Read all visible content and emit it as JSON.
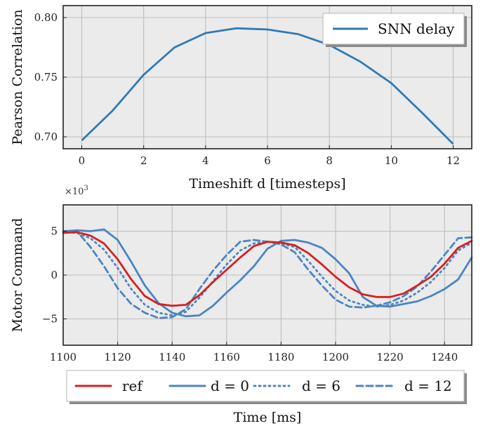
{
  "chart_data": [
    {
      "type": "line",
      "xlabel": "Timeshift d [timesteps]",
      "ylabel": "Pearson Correlation",
      "xlim": [
        -0.6,
        12.6
      ],
      "ylim": [
        0.69,
        0.81
      ],
      "xticks": [
        "0",
        "2",
        "4",
        "6",
        "8",
        "10",
        "12"
      ],
      "yticks": [
        "0.70",
        "0.75",
        "0.80"
      ],
      "grid": true,
      "legend_position": "top-right",
      "x": [
        0,
        1,
        2,
        3,
        4,
        5,
        6,
        7,
        8,
        9,
        10,
        11,
        12
      ],
      "series": [
        {
          "name": "SNN delay",
          "color": "#2e7ab6",
          "values": [
            0.697,
            0.722,
            0.752,
            0.775,
            0.787,
            0.791,
            0.79,
            0.786,
            0.777,
            0.763,
            0.745,
            0.72,
            0.694
          ]
        }
      ]
    },
    {
      "type": "line",
      "xlabel": "Time [ms]",
      "ylabel": "Motor Command",
      "scale_label": "×10^3",
      "xlim": [
        1100,
        1250
      ],
      "ylim": [
        -8,
        8
      ],
      "xticks": [
        "1100",
        "1120",
        "1140",
        "1160",
        "1180",
        "1200",
        "1220",
        "1240"
      ],
      "yticks": [
        "-5",
        "0",
        "5"
      ],
      "grid": true,
      "legend_position": "bottom-center",
      "legend": [
        {
          "label": "ref",
          "style": "solid",
          "color": "#d62020"
        },
        {
          "label": "d = 0",
          "style": "solid",
          "color": "#4a86c0"
        },
        {
          "label": "d = 6",
          "style": "dotted",
          "color": "#4a86c0"
        },
        {
          "label": "d = 12",
          "style": "dashed",
          "color": "#4a86c0"
        }
      ],
      "x": [
        1100,
        1105,
        1110,
        1115,
        1120,
        1125,
        1130,
        1135,
        1140,
        1145,
        1150,
        1155,
        1160,
        1165,
        1170,
        1175,
        1180,
        1185,
        1190,
        1195,
        1200,
        1205,
        1210,
        1215,
        1220,
        1225,
        1230,
        1235,
        1240,
        1245,
        1250
      ],
      "series": [
        {
          "name": "ref",
          "color": "#d62020",
          "style": "solid",
          "values": [
            4.8,
            4.9,
            4.5,
            3.6,
            1.8,
            -0.5,
            -2.4,
            -3.3,
            -3.5,
            -3.4,
            -2.3,
            -0.8,
            0.6,
            2.0,
            3.3,
            3.8,
            3.7,
            3.4,
            2.5,
            1.2,
            -0.2,
            -1.4,
            -2.2,
            -2.5,
            -2.5,
            -2.1,
            -1.2,
            -0.2,
            1.3,
            3.1,
            3.9
          ]
        },
        {
          "name": "d = 0",
          "color": "#4a86c0",
          "style": "solid",
          "values": [
            5.0,
            5.1,
            5.0,
            5.2,
            4.0,
            1.5,
            -1.2,
            -3.2,
            -4.3,
            -4.7,
            -4.6,
            -3.5,
            -2.0,
            -0.6,
            1.0,
            3.0,
            3.9,
            4.0,
            3.7,
            3.1,
            1.8,
            0.2,
            -2.5,
            -3.5,
            -3.6,
            -3.3,
            -3.0,
            -2.4,
            -1.6,
            -0.5,
            2.0
          ]
        },
        {
          "name": "d = 6",
          "color": "#4a86c0",
          "style": "dotted",
          "values": [
            4.9,
            4.8,
            4.2,
            2.9,
            0.8,
            -1.6,
            -3.4,
            -4.3,
            -4.6,
            -4.2,
            -2.6,
            -0.7,
            1.2,
            2.8,
            3.6,
            3.8,
            3.6,
            3.2,
            1.6,
            -0.2,
            -1.8,
            -2.9,
            -3.4,
            -3.6,
            -3.4,
            -2.9,
            -2.0,
            -0.8,
            0.8,
            2.8,
            3.7
          ]
        },
        {
          "name": "d = 12",
          "color": "#4a86c0",
          "style": "dashed",
          "values": [
            4.9,
            5.0,
            3.2,
            1.0,
            -1.5,
            -3.3,
            -4.3,
            -4.9,
            -4.8,
            -3.9,
            -1.6,
            0.5,
            2.3,
            3.8,
            4.0,
            3.8,
            3.5,
            2.6,
            0.6,
            -1.2,
            -2.8,
            -3.6,
            -3.7,
            -3.5,
            -3.1,
            -2.4,
            -1.3,
            0.4,
            2.3,
            4.2,
            4.3
          ]
        }
      ]
    }
  ]
}
